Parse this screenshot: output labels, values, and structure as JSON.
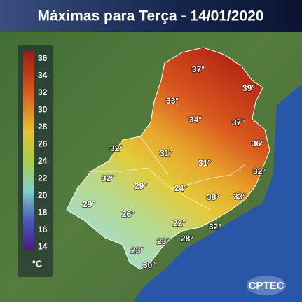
{
  "header": {
    "title": "Máximas para Terça - 14/01/2020"
  },
  "legend": {
    "ticks": [
      36,
      34,
      32,
      30,
      28,
      26,
      24,
      22,
      20,
      18,
      16,
      14
    ],
    "unit": "°C"
  },
  "temperatures": [
    "37°",
    "39°",
    "33°",
    "34°",
    "37°",
    "36°",
    "32°",
    "31°",
    "31°",
    "32°",
    "32°",
    "29°",
    "24°",
    "38°",
    "33°",
    "29°",
    "26°",
    "22°",
    "32°",
    "28°",
    "23°",
    "23°",
    "30°"
  ],
  "logo": "CPTEC"
}
